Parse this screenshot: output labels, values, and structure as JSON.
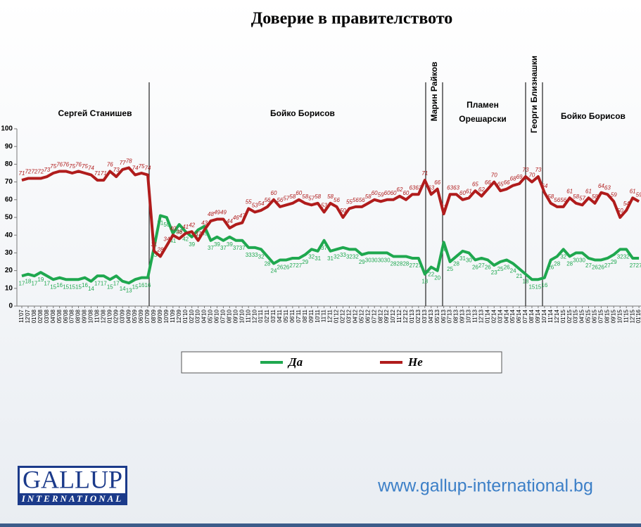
{
  "chart_data": {
    "type": "line",
    "title": "Доверие в правителството",
    "annotations": [
      "Сергей Станишев",
      "Бойко Борисов",
      "Марин Райков",
      "Пламен",
      "Орешарски",
      "Георги Близнашки",
      "Бойко Борисов"
    ],
    "categories": [
      "11'07",
      "12'07",
      "01'08",
      "02'08",
      "03'08",
      "04'08",
      "05'08",
      "06'08",
      "07'08",
      "08'08",
      "09'08",
      "10'08",
      "11'08",
      "12'08",
      "01'09",
      "02'09",
      "03'09",
      "04'09",
      "05'09",
      "06'09",
      "07'09",
      "08'09",
      "09'09",
      "10'09",
      "11'09",
      "12'09",
      "01'10",
      "02'10",
      "03'10",
      "04'10",
      "05'10",
      "06'10",
      "07'10",
      "08'10",
      "09'10",
      "10'10",
      "11'10",
      "12'10",
      "01'11",
      "02'11",
      "03'11",
      "04'11",
      "05'11",
      "06'11",
      "07'11",
      "08'11",
      "09'11",
      "10'11",
      "11'11",
      "12'11",
      "01'12",
      "02'12",
      "03'12",
      "04'12",
      "05'12",
      "06'12",
      "07'12",
      "08'12",
      "09'12",
      "10'12",
      "11'12",
      "12'12",
      "01'13",
      "02'13",
      "03'13",
      "04'13",
      "05'13",
      "06'13",
      "07'13",
      "08'13",
      "09'13",
      "10'13",
      "11'13",
      "12'13",
      "01'14",
      "02'14",
      "03'14",
      "04'14",
      "05'14",
      "06'14",
      "07'14",
      "08'14",
      "09'14",
      "10'14",
      "11'14",
      "12'14",
      "01'15",
      "02'15",
      "03'15",
      "04'15",
      "05'15",
      "06'15",
      "07'15",
      "08'15",
      "09'15",
      "10'15",
      "11'15",
      "12'15",
      "01'16"
    ],
    "series": [
      {
        "name": "Да",
        "color": "#1fa84f",
        "values": [
          17,
          18,
          17,
          19,
          17,
          15,
          16,
          15,
          15,
          15,
          16,
          14,
          17,
          17,
          15,
          17,
          14,
          13,
          15,
          16,
          16,
          33,
          51,
          50,
          41,
          46,
          42,
          39,
          43,
          45,
          37,
          39,
          37,
          39,
          37,
          37,
          33,
          33,
          32,
          28,
          24,
          26,
          26,
          27,
          27,
          29,
          32,
          31,
          37,
          31,
          32,
          33,
          32,
          32,
          29,
          30,
          30,
          30,
          30,
          28,
          28,
          28,
          27,
          27,
          18,
          22,
          20,
          36,
          25,
          28,
          31,
          30,
          26,
          27,
          26,
          23,
          25,
          26,
          24,
          21,
          18,
          15,
          15,
          16,
          26,
          28,
          32,
          28,
          30,
          30,
          27,
          26,
          26,
          27,
          29,
          32,
          32,
          27,
          27
        ]
      },
      {
        "name": "Не",
        "color": "#b01c1c",
        "values": [
          71,
          72,
          72,
          72,
          73,
          75,
          76,
          76,
          75,
          76,
          75,
          74,
          71,
          71,
          76,
          73,
          77,
          78,
          74,
          75,
          74,
          31,
          28,
          34,
          40,
          38,
          41,
          42,
          37,
          43,
          48,
          49,
          49,
          44,
          46,
          47,
          55,
          53,
          54,
          56,
          60,
          56,
          57,
          58,
          60,
          58,
          57,
          58,
          53,
          58,
          56,
          50,
          55,
          56,
          56,
          58,
          60,
          59,
          60,
          60,
          62,
          60,
          63,
          63,
          71,
          63,
          66,
          52,
          63,
          63,
          60,
          61,
          65,
          62,
          66,
          70,
          65,
          66,
          68,
          69,
          73,
          70,
          73,
          64,
          58,
          56,
          56,
          61,
          58,
          57,
          61,
          58,
          64,
          63,
          59,
          50,
          54,
          61,
          59
        ]
      }
    ],
    "ylim": [
      0,
      100
    ],
    "yticks": [
      0,
      10,
      20,
      30,
      40,
      50,
      60,
      70,
      80,
      90,
      100
    ],
    "logo": [
      "GALLUP",
      "INTERNATIONAL"
    ],
    "url": "www.gallup-international.bg"
  }
}
